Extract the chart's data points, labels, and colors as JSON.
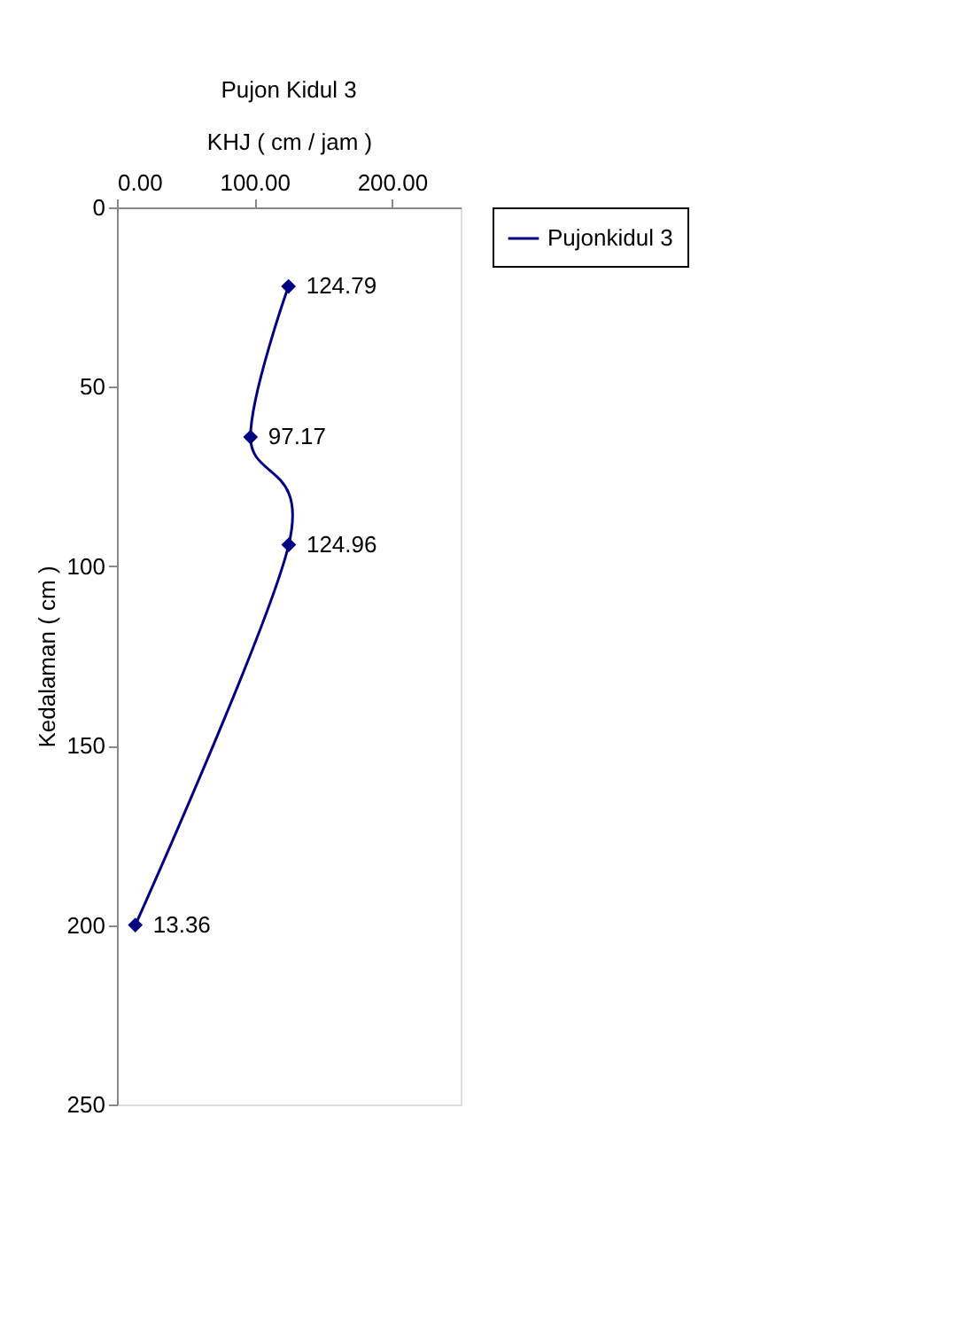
{
  "chart_data": {
    "type": "line",
    "orientation": "horizontal",
    "title": "Pujon Kidul 3",
    "xlabel": "KHJ ( cm / jam )",
    "ylabel": "Kedalaman ( cm )",
    "x": [
      22,
      64,
      94,
      200
    ],
    "series": [
      {
        "name": "Pujonkidul 3",
        "color": "#000080",
        "values": [
          124.79,
          97.17,
          124.96,
          13.36
        ]
      }
    ],
    "xlim": [
      0,
      250
    ],
    "xticks": [
      {
        "value": 0,
        "label": "0.00"
      },
      {
        "value": 100,
        "label": "100.00"
      },
      {
        "value": 200,
        "label": "200.00"
      }
    ],
    "ylim": [
      250,
      0
    ],
    "yticks": [
      0,
      50,
      100,
      150,
      200,
      250
    ],
    "data_labels": true,
    "marker": "diamond",
    "line_style": "solid",
    "grid": false,
    "legend": "right"
  }
}
